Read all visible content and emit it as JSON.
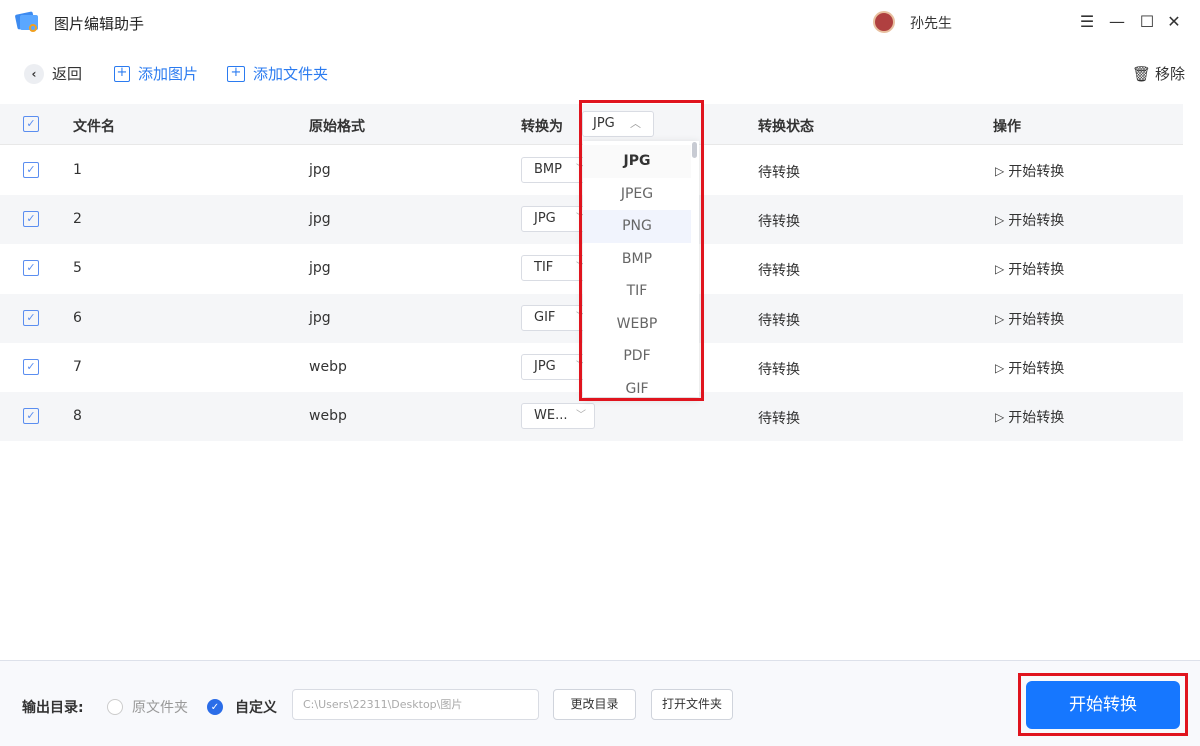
{
  "app": {
    "title": "图片编辑助手",
    "user": "孙先生"
  },
  "toolbar": {
    "back": "返回",
    "add_image": "添加图片",
    "add_folder": "添加文件夹",
    "remove": "移除"
  },
  "table": {
    "headers": {
      "filename": "文件名",
      "format": "原始格式",
      "convert_to": "转换为",
      "status": "转换状态",
      "action": "操作"
    },
    "header_select": "JPG",
    "rows": [
      {
        "name": "1",
        "format": "jpg",
        "target": "BMP",
        "status": "待转换",
        "action": "开始转换",
        "checked": true
      },
      {
        "name": "2",
        "format": "jpg",
        "target": "JPG",
        "status": "待转换",
        "action": "开始转换",
        "checked": true
      },
      {
        "name": "5",
        "format": "jpg",
        "target": "TIF",
        "status": "待转换",
        "action": "开始转换",
        "checked": true
      },
      {
        "name": "6",
        "format": "jpg",
        "target": "GIF",
        "status": "待转换",
        "action": "开始转换",
        "checked": true
      },
      {
        "name": "7",
        "format": "webp",
        "target": "JPG",
        "status": "待转换",
        "action": "开始转换",
        "checked": true
      },
      {
        "name": "8",
        "format": "webp",
        "target": "WE...",
        "status": "待转换",
        "action": "开始转换",
        "checked": true
      }
    ]
  },
  "dropdown": {
    "options": [
      "JPG",
      "JPEG",
      "PNG",
      "BMP",
      "TIF",
      "WEBP",
      "PDF",
      "GIF"
    ],
    "selected": "JPG",
    "hovered": "PNG"
  },
  "output": {
    "label": "输出目录:",
    "opt_original": "原文件夹",
    "opt_custom": "自定义",
    "selected": "自定义",
    "path_placeholder": "C:\\Users\\22311\\Desktop\\图片",
    "change_dir": "更改目录",
    "open_folder": "打开文件夹"
  },
  "start_button": "开始转换",
  "colors": {
    "accent": "#1677ff",
    "highlight": "#e0141e"
  }
}
